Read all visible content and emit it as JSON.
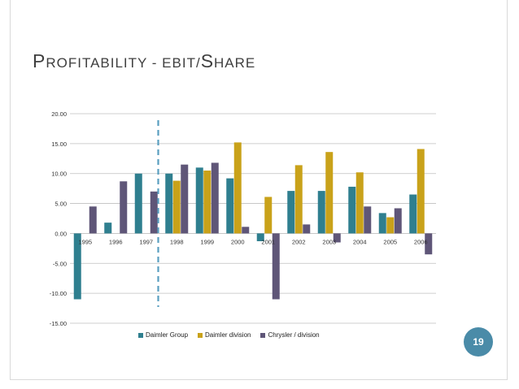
{
  "slide": {
    "title_first": "P",
    "title_rest": "ROFITABILITY  - EBIT/",
    "title_s": "S",
    "title_end": "HARE",
    "page_number": "19"
  },
  "colors": {
    "daimler_group": "#2f7f8f",
    "daimler_division": "#c9a21a",
    "chrysler": "#5f5678",
    "grid": "#bfbfbf",
    "dashed_line": "#5a9fc0"
  },
  "chart_data": {
    "type": "bar",
    "title": "",
    "xlabel": "",
    "ylabel": "",
    "ylim": [
      -15,
      20
    ],
    "yticks": [
      "20.00",
      "15.00",
      "10.00",
      "5.00",
      "0.00",
      "-5.00",
      "-10.00",
      "-15.00"
    ],
    "ytick_values": [
      20,
      15,
      10,
      5,
      0,
      -5,
      -10,
      -15
    ],
    "categories": [
      "1995",
      "1996",
      "1997",
      "1998",
      "1999",
      "2000",
      "2001",
      "2002",
      "2003",
      "2004",
      "2005",
      "2006"
    ],
    "series": [
      {
        "name": "Daimler Group",
        "values": [
          -11.0,
          1.8,
          10.0,
          10.0,
          11.0,
          9.2,
          -1.3,
          7.1,
          7.1,
          7.8,
          3.4,
          6.5
        ]
      },
      {
        "name": "Daimler division",
        "values": [
          null,
          null,
          null,
          8.8,
          10.5,
          15.2,
          6.1,
          11.4,
          13.6,
          10.2,
          2.7,
          14.1
        ]
      },
      {
        "name": "Chrysler / division",
        "values": [
          4.5,
          8.7,
          7.0,
          11.5,
          11.8,
          1.1,
          -11.0,
          1.5,
          -1.5,
          4.5,
          4.2,
          -3.5
        ]
      }
    ],
    "annotation": "dashed vertical separator between 1997 and 1998"
  }
}
